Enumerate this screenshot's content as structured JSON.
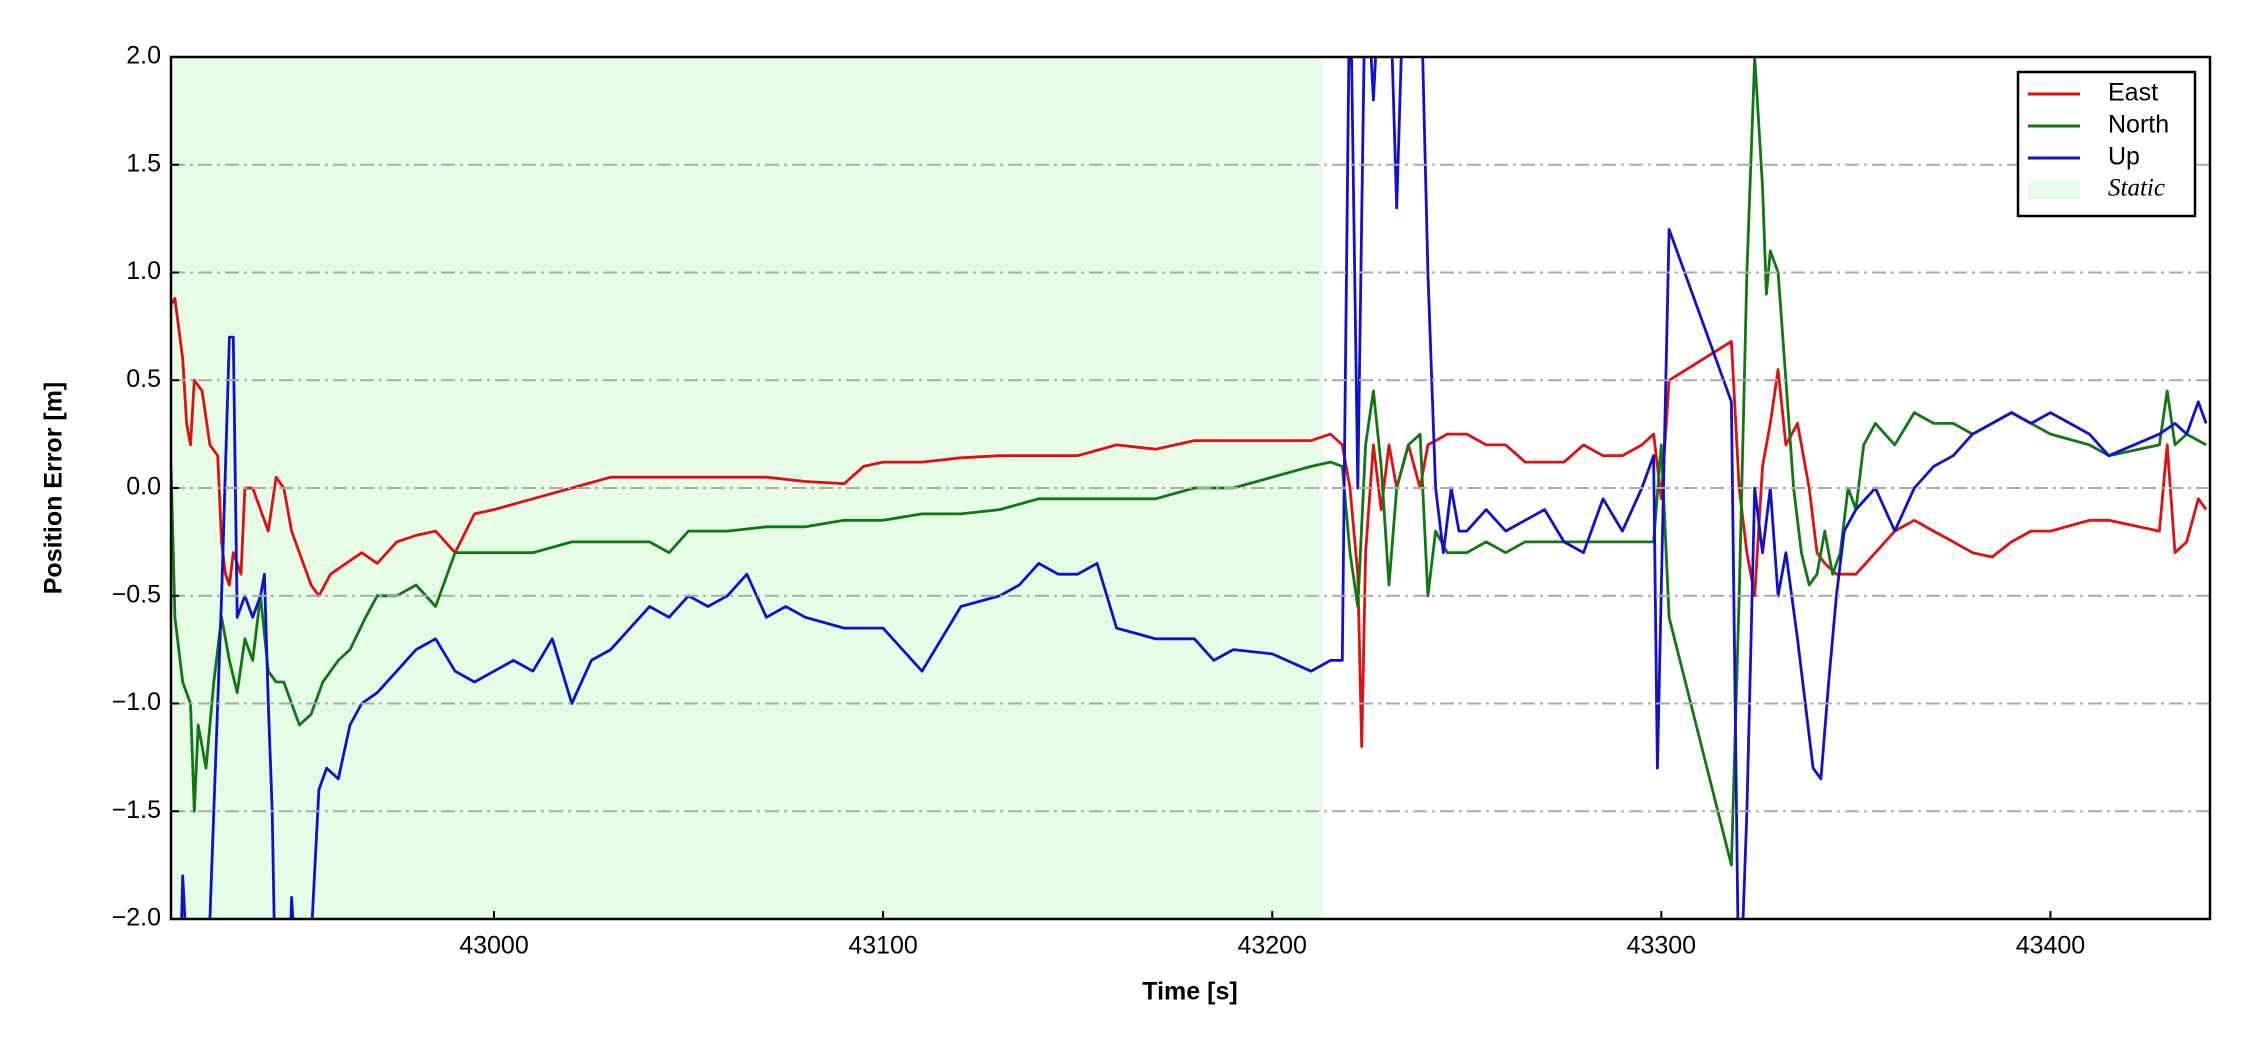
{
  "chart_data": {
    "type": "line",
    "xlabel": "Time [s]",
    "ylabel": "Position Error [m]",
    "xlim": [
      42917,
      43441
    ],
    "ylim": [
      -2,
      2
    ],
    "xticks": [
      43000,
      43100,
      43200,
      43300,
      43400
    ],
    "yticks": [
      {
        "value": -2,
        "label": "−2.0"
      },
      {
        "value": -1.5,
        "label": "−1.5"
      },
      {
        "value": -1,
        "label": "−1.0"
      },
      {
        "value": -0.5,
        "label": "−0.5"
      },
      {
        "value": 0,
        "label": "0.0"
      },
      {
        "value": 0.5,
        "label": "0.5"
      },
      {
        "value": 1,
        "label": "1.0"
      },
      {
        "value": 1.5,
        "label": "1.5"
      },
      {
        "value": 2,
        "label": "2.0"
      }
    ],
    "grid": true,
    "legend": "upper right",
    "static_region": [
      42917,
      43213
    ],
    "static_label": "Static",
    "static_color": "#e6fce6",
    "series": [
      {
        "name": "East",
        "color": "#dd1111",
        "x": [
          42917,
          42918,
          42920,
          42921,
          42922,
          42923,
          42925,
          42927,
          42929,
          42930,
          42931,
          42932,
          42933,
          42935,
          42936,
          42938,
          42940,
          42942,
          42944,
          42946,
          42948,
          42950,
          42953,
          42955,
          42958,
          42962,
          42966,
          42970,
          42975,
          42980,
          42985,
          42990,
          42995,
          43000,
          43010,
          43020,
          43030,
          43040,
          43050,
          43060,
          43070,
          43080,
          43090,
          43095,
          43100,
          43110,
          43120,
          43130,
          43140,
          43150,
          43160,
          43170,
          43180,
          43190,
          43200,
          43210,
          43215,
          43218,
          43220,
          43222,
          43223,
          43224,
          43226,
          43228,
          43230,
          43232,
          43235,
          43238,
          43240,
          43245,
          43250,
          43255,
          43260,
          43265,
          43270,
          43275,
          43280,
          43285,
          43290,
          43295,
          43298,
          43300,
          43302,
          43318,
          43320,
          43322,
          43324,
          43326,
          43328,
          43330,
          43332,
          43335,
          43338,
          43340,
          43342,
          43345,
          43350,
          43355,
          43360,
          43365,
          43370,
          43375,
          43380,
          43385,
          43390,
          43395,
          43400,
          43410,
          43415,
          43428,
          43430,
          43432,
          43435,
          43438,
          43440
        ],
        "values": [
          0.85,
          0.88,
          0.6,
          0.3,
          0.2,
          0.5,
          0.45,
          0.2,
          0.15,
          -0.25,
          -0.4,
          -0.45,
          -0.3,
          -0.4,
          0.0,
          0.0,
          -0.1,
          -0.2,
          0.05,
          0.0,
          -0.2,
          -0.3,
          -0.45,
          -0.5,
          -0.4,
          -0.35,
          -0.3,
          -0.35,
          -0.25,
          -0.22,
          -0.2,
          -0.3,
          -0.12,
          -0.1,
          -0.05,
          0.0,
          0.05,
          0.05,
          0.05,
          0.05,
          0.05,
          0.03,
          0.02,
          0.1,
          0.12,
          0.12,
          0.14,
          0.15,
          0.15,
          0.15,
          0.2,
          0.18,
          0.22,
          0.22,
          0.22,
          0.22,
          0.25,
          0.2,
          0.0,
          -0.4,
          -1.2,
          -0.3,
          0.2,
          -0.1,
          0.2,
          0.0,
          0.2,
          0.0,
          0.2,
          0.25,
          0.25,
          0.2,
          0.2,
          0.12,
          0.12,
          0.12,
          0.2,
          0.15,
          0.15,
          0.2,
          0.25,
          -0.05,
          0.5,
          0.68,
          0.0,
          -0.3,
          -0.5,
          0.1,
          0.3,
          0.55,
          0.2,
          0.3,
          0.0,
          -0.3,
          -0.35,
          -0.4,
          -0.4,
          -0.3,
          -0.2,
          -0.15,
          -0.2,
          -0.25,
          -0.3,
          -0.32,
          -0.25,
          -0.2,
          -0.2,
          -0.15,
          -0.15,
          -0.2,
          0.2,
          -0.3,
          -0.25,
          -0.05,
          -0.1
        ]
      },
      {
        "name": "North",
        "color": "#117711",
        "x": [
          42917,
          42918,
          42920,
          42922,
          42923,
          42924,
          42926,
          42928,
          42930,
          42932,
          42934,
          42936,
          42938,
          42940,
          42942,
          42944,
          42946,
          42948,
          42950,
          42953,
          42956,
          42960,
          42963,
          42967,
          42970,
          42975,
          42980,
          42985,
          42990,
          42995,
          43000,
          43010,
          43020,
          43030,
          43040,
          43045,
          43050,
          43060,
          43070,
          43080,
          43090,
          43100,
          43110,
          43120,
          43130,
          43140,
          43150,
          43160,
          43170,
          43180,
          43190,
          43200,
          43210,
          43215,
          43218,
          43220,
          43222,
          43224,
          43226,
          43228,
          43230,
          43232,
          43235,
          43238,
          43240,
          43242,
          43245,
          43250,
          43255,
          43260,
          43265,
          43270,
          43280,
          43290,
          43298,
          43300,
          43302,
          43318,
          43320,
          43322,
          43324,
          43326,
          43327,
          43328,
          43330,
          43332,
          43334,
          43336,
          43338,
          43340,
          43342,
          43344,
          43346,
          43348,
          43350,
          43352,
          43355,
          43360,
          43365,
          43370,
          43375,
          43380,
          43385,
          43390,
          43395,
          43400,
          43410,
          43415,
          43428,
          43430,
          43432,
          43435,
          43440
        ],
        "values": [
          0.1,
          -0.6,
          -0.9,
          -1.0,
          -1.5,
          -1.1,
          -1.3,
          -0.9,
          -0.6,
          -0.8,
          -0.95,
          -0.7,
          -0.8,
          -0.5,
          -0.85,
          -0.9,
          -0.9,
          -1.0,
          -1.1,
          -1.05,
          -0.9,
          -0.8,
          -0.75,
          -0.6,
          -0.5,
          -0.5,
          -0.45,
          -0.55,
          -0.3,
          -0.3,
          -0.3,
          -0.3,
          -0.25,
          -0.25,
          -0.25,
          -0.3,
          -0.2,
          -0.2,
          -0.18,
          -0.18,
          -0.15,
          -0.15,
          -0.12,
          -0.12,
          -0.1,
          -0.05,
          -0.05,
          -0.05,
          -0.05,
          0.0,
          0.0,
          0.05,
          0.1,
          0.12,
          0.1,
          -0.3,
          -0.55,
          0.2,
          0.45,
          0.1,
          -0.45,
          0.0,
          0.2,
          0.25,
          -0.5,
          -0.2,
          -0.3,
          -0.3,
          -0.25,
          -0.3,
          -0.25,
          -0.25,
          -0.25,
          -0.25,
          -0.25,
          0.2,
          -0.6,
          -1.75,
          -0.5,
          1.0,
          2.0,
          1.4,
          0.9,
          1.1,
          1.0,
          0.5,
          0.0,
          -0.3,
          -0.45,
          -0.4,
          -0.2,
          -0.4,
          -0.3,
          0.0,
          -0.1,
          0.2,
          0.3,
          0.2,
          0.35,
          0.3,
          0.3,
          0.25,
          0.3,
          0.35,
          0.3,
          0.25,
          0.2,
          0.15,
          0.2,
          0.45,
          0.2,
          0.25,
          0.2
        ]
      },
      {
        "name": "Up",
        "color": "#1111cc",
        "x": [
          42917,
          42919,
          42920,
          42922,
          42926,
          42928,
          42930,
          42932,
          42933,
          42934,
          42936,
          42938,
          42940,
          42941,
          42942,
          42943,
          42944,
          42947,
          42948,
          42950,
          42953,
          42955,
          42957,
          42960,
          42963,
          42966,
          42970,
          42975,
          42980,
          42985,
          42990,
          42995,
          43000,
          43005,
          43010,
          43015,
          43020,
          43025,
          43030,
          43040,
          43045,
          43050,
          43055,
          43060,
          43065,
          43070,
          43075,
          43080,
          43090,
          43100,
          43110,
          43120,
          43130,
          43135,
          43140,
          43145,
          43150,
          43155,
          43160,
          43170,
          43180,
          43185,
          43190,
          43200,
          43210,
          43215,
          43218,
          43220,
          43222,
          43224,
          43226,
          43228,
          43230,
          43232,
          43234,
          43236,
          43238,
          43240,
          43242,
          43244,
          43246,
          43248,
          43250,
          43255,
          43260,
          43265,
          43270,
          43275,
          43280,
          43285,
          43290,
          43295,
          43298,
          43299,
          43302,
          43318,
          43320,
          43322,
          43324,
          43326,
          43328,
          43330,
          43332,
          43335,
          43337,
          43339,
          43341,
          43343,
          43345,
          43347,
          43350,
          43355,
          43360,
          43365,
          43370,
          43375,
          43380,
          43385,
          43390,
          43395,
          43400,
          43410,
          43415,
          43428,
          43432,
          43435,
          43438,
          43440
        ],
        "values": [
          -2.2,
          -2.5,
          -1.8,
          -2.5,
          -2.5,
          -1.5,
          -0.5,
          0.7,
          0.7,
          -0.6,
          -0.5,
          -0.6,
          -0.5,
          -0.4,
          -1.0,
          -1.5,
          -2.5,
          -2.5,
          -1.9,
          -2.5,
          -2.1,
          -1.4,
          -1.3,
          -1.35,
          -1.1,
          -1.0,
          -0.95,
          -0.85,
          -0.75,
          -0.7,
          -0.85,
          -0.9,
          -0.85,
          -0.8,
          -0.85,
          -0.7,
          -1.0,
          -0.8,
          -0.75,
          -0.55,
          -0.6,
          -0.5,
          -0.55,
          -0.5,
          -0.4,
          -0.6,
          -0.55,
          -0.6,
          -0.65,
          -0.65,
          -0.85,
          -0.55,
          -0.5,
          -0.45,
          -0.35,
          -0.4,
          -0.4,
          -0.35,
          -0.65,
          -0.7,
          -0.7,
          -0.8,
          -0.75,
          -0.77,
          -0.85,
          -0.8,
          -0.8,
          2.5,
          0.0,
          2.5,
          1.8,
          2.5,
          2.5,
          1.3,
          2.5,
          2.0,
          2.5,
          1.0,
          0.0,
          -0.3,
          0.0,
          -0.2,
          -0.2,
          -0.1,
          -0.2,
          -0.15,
          -0.1,
          -0.25,
          -0.3,
          -0.05,
          -0.2,
          0.0,
          0.15,
          -1.3,
          1.2,
          0.4,
          -2.5,
          -1.5,
          0.0,
          -0.3,
          0.0,
          -0.5,
          -0.3,
          -0.7,
          -1.0,
          -1.3,
          -1.35,
          -0.9,
          -0.5,
          -0.2,
          -0.1,
          0.0,
          -0.2,
          0.0,
          0.1,
          0.15,
          0.25,
          0.3,
          0.35,
          0.3,
          0.35,
          0.25,
          0.15,
          0.25,
          0.3,
          0.25,
          0.4,
          0.3
        ]
      }
    ]
  }
}
